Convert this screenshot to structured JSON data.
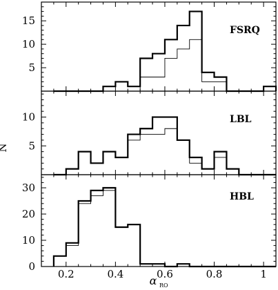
{
  "figure": {
    "ylabel": "N",
    "xlabel_main": "α",
    "xlabel_sub": "RO"
  },
  "chart_data": [
    {
      "type": "histogram",
      "panel_label": "FSRQ",
      "bin_edges": [
        0.15,
        0.2,
        0.25,
        0.3,
        0.35,
        0.4,
        0.45,
        0.5,
        0.55,
        0.6,
        0.65,
        0.7,
        0.75,
        0.8,
        0.85,
        0.9,
        0.95,
        1.0,
        1.05
      ],
      "series": [
        {
          "style": "thick",
          "counts": [
            0,
            0,
            0,
            0,
            1,
            2,
            1,
            7,
            8,
            11,
            14,
            17,
            4,
            3,
            0,
            0,
            0,
            1
          ]
        },
        {
          "style": "thin",
          "counts": [
            0,
            0,
            0,
            0,
            0,
            0,
            0,
            3,
            3,
            7,
            9,
            11,
            2,
            2,
            0,
            0,
            0,
            0
          ]
        }
      ],
      "ylim": [
        0,
        19
      ],
      "yticks": [
        5,
        10,
        15
      ]
    },
    {
      "type": "histogram",
      "panel_label": "LBL",
      "bin_edges": [
        0.15,
        0.2,
        0.25,
        0.3,
        0.35,
        0.4,
        0.45,
        0.5,
        0.55,
        0.6,
        0.65,
        0.7,
        0.75,
        0.8,
        0.85,
        0.9,
        0.95,
        1.0,
        1.05
      ],
      "series": [
        {
          "style": "thick",
          "counts": [
            0,
            1,
            4,
            2,
            4,
            3,
            7,
            8,
            10,
            10,
            6,
            3,
            1,
            4,
            1,
            0,
            0,
            0
          ]
        },
        {
          "style": "thin",
          "counts": [
            0,
            1,
            4,
            2,
            4,
            3,
            6,
            7,
            7,
            8,
            6,
            2,
            1,
            3,
            1,
            0,
            0,
            0
          ]
        }
      ],
      "ylim": [
        0,
        14.5
      ],
      "yticks": [
        5,
        10
      ]
    },
    {
      "type": "histogram",
      "panel_label": "HBL",
      "bin_edges": [
        0.15,
        0.2,
        0.25,
        0.3,
        0.35,
        0.4,
        0.45,
        0.5,
        0.55,
        0.6,
        0.65,
        0.7,
        0.75,
        0.8,
        0.85,
        0.9,
        0.95,
        1.0,
        1.05
      ],
      "series": [
        {
          "style": "thick",
          "counts": [
            4,
            9,
            25,
            29,
            30,
            15,
            16,
            1,
            1,
            0,
            1,
            0,
            0,
            0,
            0,
            0,
            0,
            0
          ]
        },
        {
          "style": "thin",
          "counts": [
            4,
            8,
            24,
            27,
            29,
            15,
            16,
            1,
            1,
            0,
            1,
            0,
            0,
            0,
            0,
            0,
            0,
            0
          ]
        }
      ],
      "ylim": [
        0,
        35
      ],
      "yticks": [
        0,
        10,
        20,
        30
      ]
    }
  ],
  "x_axis": {
    "xlim": [
      0.1,
      1.05
    ],
    "ticks": [
      {
        "value": 0.2,
        "label": "0.2"
      },
      {
        "value": 0.4,
        "label": "0.4"
      },
      {
        "value": 0.6,
        "label": "0.6"
      },
      {
        "value": 0.8,
        "label": "0.8"
      },
      {
        "value": 1.0,
        "label": "1"
      }
    ],
    "minor_step": 0.05
  }
}
